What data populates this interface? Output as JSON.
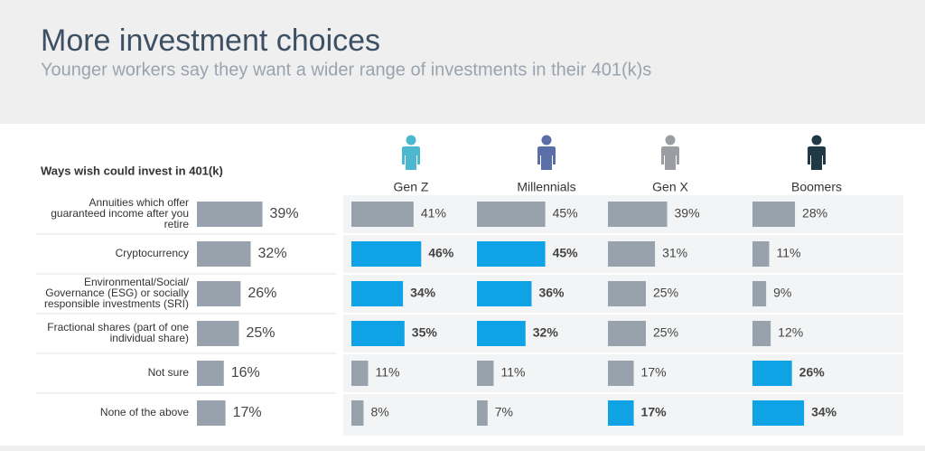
{
  "chart_data": {
    "type": "bar",
    "title": "More investment choices",
    "subtitle": "Younger workers say they want a wider range of investments in their 401(k)s",
    "categories_title": "Ways wish could invest in 401(k)",
    "categories": [
      [
        "Annuities which offer",
        "guaranteed income after you",
        "retire"
      ],
      [
        "Cryptocurrency"
      ],
      [
        "Environmental/Social/",
        "Governance (ESG) or socially",
        "responsible investments (SRI)"
      ],
      [
        "Fractional shares (part of one",
        "individual share)"
      ],
      [
        "Not sure"
      ],
      [
        "None of the above"
      ]
    ],
    "overall": {
      "color": "#97a2ad",
      "values": [
        39,
        32,
        26,
        25,
        16,
        17
      ],
      "value_labels": [
        "39%",
        "32%",
        "26%",
        "25%",
        "16%",
        "17%"
      ]
    },
    "series": [
      {
        "name": "Gen Z",
        "icon_color": "#4bb8d0",
        "values": [
          41,
          46,
          34,
          35,
          11,
          8
        ],
        "value_labels": [
          "41%",
          "46%",
          "34%",
          "35%",
          "11%",
          "8%"
        ],
        "colors": [
          "#97a2ad",
          "#0fa3e6",
          "#0fa3e6",
          "#0fa3e6",
          "#97a2ad",
          "#97a2ad"
        ]
      },
      {
        "name": "Millennials",
        "icon_color": "#5a6fa8",
        "values": [
          45,
          45,
          36,
          32,
          11,
          7
        ],
        "value_labels": [
          "45%",
          "45%",
          "36%",
          "32%",
          "11%",
          "7%"
        ],
        "colors": [
          "#97a2ad",
          "#0fa3e6",
          "#0fa3e6",
          "#0fa3e6",
          "#97a2ad",
          "#97a2ad"
        ]
      },
      {
        "name": "Gen X",
        "icon_color": "#9a9ea3",
        "values": [
          39,
          31,
          25,
          25,
          17,
          17
        ],
        "value_labels": [
          "39%",
          "31%",
          "25%",
          "25%",
          "17%",
          "17%"
        ],
        "colors": [
          "#97a2ad",
          "#97a2ad",
          "#97a2ad",
          "#97a2ad",
          "#97a2ad",
          "#0fa3e6"
        ]
      },
      {
        "name": "Boomers",
        "icon_color": "#1f3a44",
        "values": [
          28,
          11,
          9,
          12,
          26,
          34
        ],
        "value_labels": [
          "28%",
          "11%",
          "9%",
          "12%",
          "26%",
          "34%"
        ],
        "colors": [
          "#97a2ad",
          "#97a2ad",
          "#97a2ad",
          "#97a2ad",
          "#0fa3e6",
          "#0fa3e6"
        ]
      }
    ],
    "highlight_color": "#0fa3e6"
  }
}
